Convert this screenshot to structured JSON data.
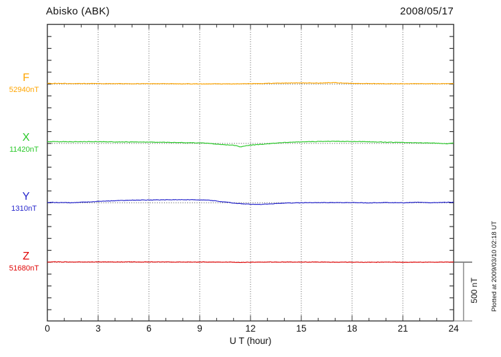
{
  "header": {
    "title": "Abisko (ABK)",
    "date": "2008/05/17"
  },
  "axes": {
    "x_label": "U T (hour)",
    "x_ticks": [
      "0",
      "3",
      "6",
      "9",
      "12",
      "15",
      "18",
      "21",
      "24"
    ],
    "x_tick_hours": [
      0,
      3,
      6,
      9,
      12,
      15,
      18,
      21,
      24
    ],
    "x_minor_step_hours": 1,
    "xlim_hours": [
      0,
      24
    ],
    "grid_hours": [
      3,
      6,
      9,
      12,
      15,
      18,
      21
    ],
    "y_division_nT": 100
  },
  "scale_bar": {
    "label": "500 nT",
    "span_nT": 500
  },
  "footer": {
    "plotted_at": "Plotted at 2009/03/10 02:18 UT"
  },
  "colors": {
    "frame": "#333333",
    "grid": "#555555",
    "baseline": "#444444",
    "scalebar": "#888888",
    "scalebar_tick": "#444444",
    "F": "#FFA500",
    "X": "#28C828",
    "Y": "#2424CC",
    "Z": "#E00505"
  },
  "chart_data": {
    "type": "line",
    "title": "Abisko (ABK) magnetogram",
    "date": "2008/05/17",
    "xlabel": "U T (hour)",
    "xlim": [
      0,
      24
    ],
    "grid": true,
    "y_division_nT": 100,
    "scale_bar_nT": 500,
    "series": [
      {
        "name": "F",
        "baseline_label": "52940nT",
        "baseline_nT": 52940,
        "color": "#FFA500",
        "points_hour_delta_nT": [
          [
            0,
            5
          ],
          [
            1,
            5
          ],
          [
            2,
            4
          ],
          [
            3,
            4
          ],
          [
            4,
            3
          ],
          [
            5,
            3
          ],
          [
            6,
            3
          ],
          [
            7,
            2
          ],
          [
            8,
            2
          ],
          [
            9,
            1
          ],
          [
            10,
            1
          ],
          [
            11,
            1
          ],
          [
            12,
            3
          ],
          [
            13,
            5
          ],
          [
            14,
            8
          ],
          [
            15,
            10
          ],
          [
            16,
            8
          ],
          [
            16.5,
            10
          ],
          [
            17,
            11
          ],
          [
            17.5,
            8
          ],
          [
            18,
            6
          ],
          [
            19,
            4
          ],
          [
            20,
            3
          ],
          [
            21,
            3
          ],
          [
            22,
            3
          ],
          [
            23,
            3
          ],
          [
            24,
            3
          ]
        ]
      },
      {
        "name": "X",
        "baseline_label": "11420nT",
        "baseline_nT": 11420,
        "color": "#28C828",
        "points_hour_delta_nT": [
          [
            0,
            16
          ],
          [
            0.5,
            14
          ],
          [
            1,
            15
          ],
          [
            1.5,
            14
          ],
          [
            2,
            14
          ],
          [
            2.5,
            15
          ],
          [
            3,
            14
          ],
          [
            4,
            13
          ],
          [
            5,
            12
          ],
          [
            6,
            12
          ],
          [
            6.5,
            10
          ],
          [
            7,
            9
          ],
          [
            8,
            7
          ],
          [
            9,
            4
          ],
          [
            9.5,
            1
          ],
          [
            10,
            -6
          ],
          [
            10.5,
            -12
          ],
          [
            11,
            -16
          ],
          [
            11.2,
            -18
          ],
          [
            11.4,
            -30
          ],
          [
            11.6,
            -24
          ],
          [
            11.8,
            -18
          ],
          [
            12,
            -15
          ],
          [
            12.5,
            -9
          ],
          [
            13,
            -3
          ],
          [
            13.5,
            2
          ],
          [
            14,
            8
          ],
          [
            14.5,
            11
          ],
          [
            15,
            13
          ],
          [
            15.5,
            15
          ],
          [
            16,
            16
          ],
          [
            16.5,
            17
          ],
          [
            17,
            18
          ],
          [
            17.5,
            17
          ],
          [
            18,
            16
          ],
          [
            18.5,
            15
          ],
          [
            19,
            14
          ],
          [
            19.5,
            12
          ],
          [
            20,
            10
          ],
          [
            20.5,
            9
          ],
          [
            21,
            8
          ],
          [
            21.5,
            6
          ],
          [
            22,
            5
          ],
          [
            22.5,
            4
          ],
          [
            23,
            2
          ],
          [
            23.3,
            0
          ],
          [
            23.6,
            -4
          ],
          [
            23.8,
            1
          ],
          [
            24,
            2
          ]
        ]
      },
      {
        "name": "Y",
        "baseline_label": "1310nT",
        "baseline_nT": 1310,
        "color": "#2424CC",
        "points_hour_delta_nT": [
          [
            0,
            1
          ],
          [
            0.3,
            4
          ],
          [
            0.6,
            2
          ],
          [
            1,
            2
          ],
          [
            1.5,
            1
          ],
          [
            2,
            5
          ],
          [
            2.5,
            8
          ],
          [
            3,
            12
          ],
          [
            3.5,
            15
          ],
          [
            4,
            18
          ],
          [
            4.5,
            20
          ],
          [
            5,
            22
          ],
          [
            5.5,
            23
          ],
          [
            6,
            24
          ],
          [
            6.5,
            25
          ],
          [
            7,
            25
          ],
          [
            7.5,
            26
          ],
          [
            8,
            26
          ],
          [
            8.5,
            26
          ],
          [
            9,
            25
          ],
          [
            9.5,
            22
          ],
          [
            10,
            15
          ],
          [
            10.3,
            10
          ],
          [
            10.6,
            5
          ],
          [
            11,
            -2
          ],
          [
            11.3,
            -6
          ],
          [
            11.6,
            -9
          ],
          [
            12,
            -12
          ],
          [
            12.3,
            -14
          ],
          [
            12.6,
            -13
          ],
          [
            13,
            -10
          ],
          [
            13.5,
            -6
          ],
          [
            14,
            -3
          ],
          [
            14.5,
            -1
          ],
          [
            15,
            0
          ],
          [
            15.5,
            1
          ],
          [
            16,
            2
          ],
          [
            16.5,
            2
          ],
          [
            17,
            2
          ],
          [
            17.5,
            1
          ],
          [
            18,
            2
          ],
          [
            18.5,
            1
          ],
          [
            19,
            0
          ],
          [
            19.5,
            1
          ],
          [
            20,
            2
          ],
          [
            20.5,
            1
          ],
          [
            21,
            0
          ],
          [
            21.5,
            3
          ],
          [
            21.8,
            5
          ],
          [
            22,
            3
          ],
          [
            22.5,
            1
          ],
          [
            23,
            2
          ],
          [
            23.5,
            4
          ],
          [
            23.8,
            5
          ],
          [
            24,
            3
          ]
        ]
      },
      {
        "name": "Z",
        "baseline_label": "51680nT",
        "baseline_nT": 51680,
        "color": "#E00505",
        "points_hour_delta_nT": [
          [
            0,
            2
          ],
          [
            1,
            2
          ],
          [
            2,
            1
          ],
          [
            3,
            2
          ],
          [
            4,
            2
          ],
          [
            5,
            2
          ],
          [
            6,
            2
          ],
          [
            7,
            1
          ],
          [
            8,
            1
          ],
          [
            9,
            1
          ],
          [
            10,
            1
          ],
          [
            11,
            0
          ],
          [
            11.5,
            -2
          ],
          [
            12,
            0
          ],
          [
            13,
            1
          ],
          [
            14,
            1
          ],
          [
            15,
            1
          ],
          [
            16,
            1
          ],
          [
            17,
            0
          ],
          [
            18,
            0
          ],
          [
            19,
            -1
          ],
          [
            20,
            0
          ],
          [
            21,
            0
          ],
          [
            22,
            0
          ],
          [
            23,
            0
          ],
          [
            24,
            1
          ]
        ]
      }
    ]
  }
}
